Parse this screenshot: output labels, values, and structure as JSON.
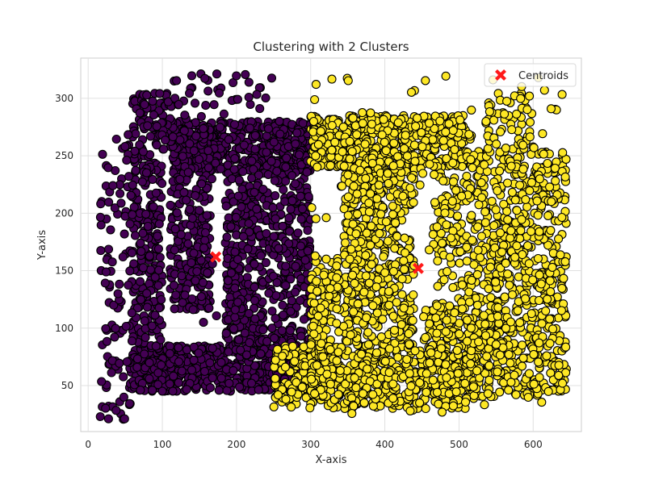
{
  "chart_data": {
    "type": "scatter",
    "title": "Clustering with 2 Clusters",
    "xlabel": "X-axis",
    "ylabel": "Y-axis",
    "xlim": [
      -10,
      665
    ],
    "ylim": [
      10,
      335
    ],
    "xticks": [
      0,
      100,
      200,
      300,
      400,
      500,
      600
    ],
    "yticks": [
      50,
      100,
      150,
      200,
      250,
      300
    ],
    "grid": true,
    "legend": {
      "placement": "top-right",
      "entries": [
        "Centroids"
      ]
    },
    "series": [
      {
        "cluster": 0,
        "color": "#440154",
        "edge_color": "#000000",
        "regions": [
          {
            "shape": "block",
            "x_range": [
              55,
              300
            ],
            "y_range": [
              45,
              85
            ],
            "count": 520
          },
          {
            "shape": "block",
            "x_range": [
              60,
              100
            ],
            "y_range": [
              45,
              250
            ],
            "count": 260
          },
          {
            "shape": "block",
            "x_range": [
              115,
              300
            ],
            "y_range": [
              235,
              280
            ],
            "count": 360
          },
          {
            "shape": "block",
            "x_range": [
              110,
              165
            ],
            "y_range": [
              115,
              275
            ],
            "count": 280
          },
          {
            "shape": "block",
            "x_range": [
              185,
              240
            ],
            "y_range": [
              75,
              240
            ],
            "count": 280
          },
          {
            "shape": "block",
            "x_range": [
              240,
              300
            ],
            "y_range": [
              85,
              280
            ],
            "count": 280
          },
          {
            "shape": "block",
            "x_range": [
              60,
              115
            ],
            "y_range": [
              250,
              305
            ],
            "count": 90
          },
          {
            "shape": "block",
            "x_range": [
              15,
              60
            ],
            "y_range": [
              20,
              270
            ],
            "count": 110
          },
          {
            "shape": "block",
            "x_range": [
              140,
              290
            ],
            "y_range": [
              90,
              230
            ],
            "count": 40
          },
          {
            "shape": "block",
            "x_range": [
              110,
              250
            ],
            "y_range": [
              280,
              322
            ],
            "count": 40
          }
        ]
      },
      {
        "cluster": 1,
        "color": "#fde725",
        "edge_color": "#000000",
        "regions": [
          {
            "shape": "block",
            "x_range": [
              300,
              510
            ],
            "y_range": [
              240,
              285
            ],
            "count": 520
          },
          {
            "shape": "block",
            "x_range": [
              250,
              520
            ],
            "y_range": [
              30,
              85
            ],
            "count": 520
          },
          {
            "shape": "block",
            "x_range": [
              345,
              400
            ],
            "y_range": [
              85,
              240
            ],
            "count": 320
          },
          {
            "shape": "block",
            "x_range": [
              400,
              440
            ],
            "y_range": [
              85,
              240
            ],
            "count": 160
          },
          {
            "shape": "block",
            "x_range": [
              300,
              340
            ],
            "y_range": [
              50,
              165
            ],
            "count": 120
          },
          {
            "shape": "block",
            "x_range": [
              465,
              510
            ],
            "y_range": [
              40,
              240
            ],
            "count": 140
          },
          {
            "shape": "block",
            "x_range": [
              510,
              645
            ],
            "y_range": [
              40,
              255
            ],
            "count": 700
          },
          {
            "shape": "block",
            "x_range": [
              450,
              560
            ],
            "y_range": [
              60,
              120
            ],
            "count": 160
          },
          {
            "shape": "block",
            "x_range": [
              535,
              600
            ],
            "y_range": [
              255,
              305
            ],
            "count": 50
          },
          {
            "shape": "block",
            "x_range": [
              300,
              640
            ],
            "y_range": [
              20,
              320
            ],
            "count": 220
          }
        ]
      }
    ],
    "centroids": {
      "label": "Centroids",
      "color": "#ff1a1a",
      "marker": "X",
      "points": [
        {
          "x": 172,
          "y": 162
        },
        {
          "x": 445,
          "y": 152
        }
      ]
    }
  }
}
